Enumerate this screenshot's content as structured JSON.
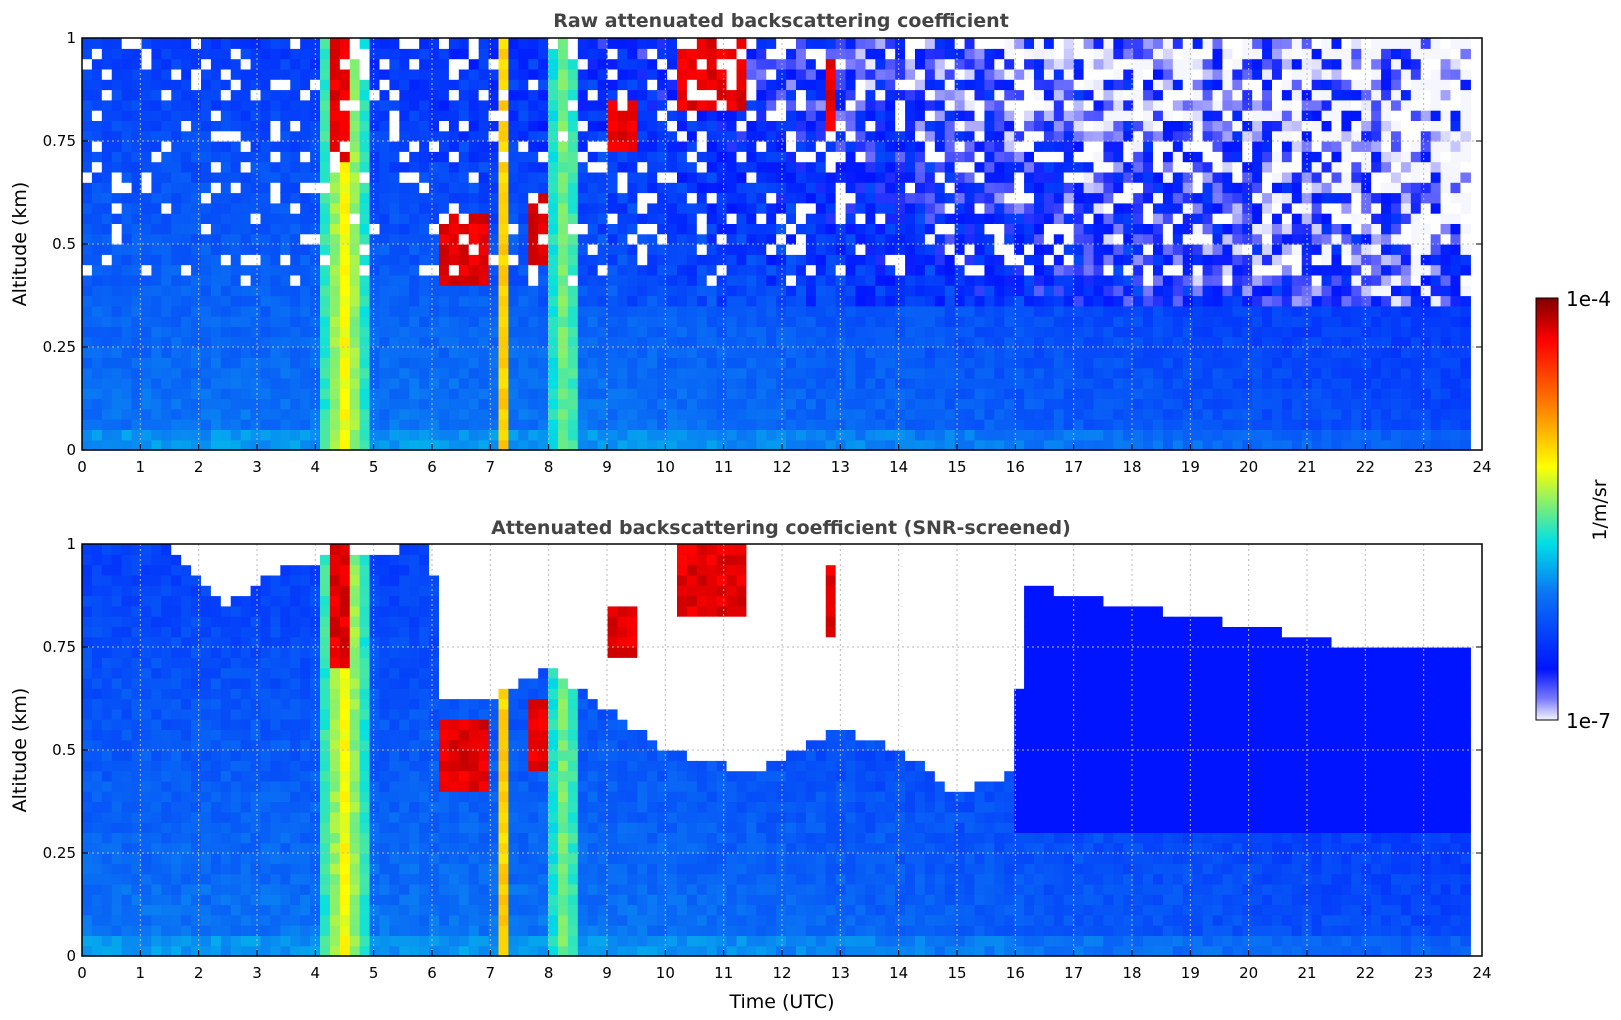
{
  "chart_data": [
    {
      "type": "heatmap",
      "title": "Raw attenuated backscattering coefficient",
      "xlabel": "",
      "ylabel": "Altitude (km)",
      "xlim": [
        0,
        24
      ],
      "ylim": [
        0,
        1
      ],
      "xticks": [
        "0",
        "1",
        "2",
        "3",
        "4",
        "5",
        "6",
        "7",
        "8",
        "9",
        "10",
        "11",
        "12",
        "13",
        "14",
        "15",
        "16",
        "17",
        "18",
        "19",
        "20",
        "21",
        "22",
        "23",
        "24"
      ],
      "yticks": [
        "0",
        "0.25",
        "0.5",
        "0.75",
        "1"
      ],
      "grid": true,
      "screened": false,
      "data_end_time": 23.8,
      "features": [
        {
          "kind": "aerosol-column",
          "t_start": 4.0,
          "t_end": 5.0,
          "alt_top": 1.0,
          "level": 0.6
        },
        {
          "kind": "aerosol-column",
          "t_start": 7.1,
          "t_end": 7.35,
          "alt_top": 1.0,
          "level": 0.65
        },
        {
          "kind": "aerosol-column",
          "t_start": 8.05,
          "t_end": 8.3,
          "alt_top": 1.0,
          "level": 0.65
        },
        {
          "kind": "aerosol-column",
          "t_start": 8.35,
          "t_end": 8.55,
          "alt_top": 1.0,
          "level": 0.5
        },
        {
          "kind": "cloud",
          "t_start": 6.1,
          "t_end": 6.9,
          "alt_bottom": 0.4,
          "alt_top": 0.58
        },
        {
          "kind": "cloud",
          "t_start": 7.6,
          "t_end": 8.0,
          "alt_bottom": 0.45,
          "alt_top": 0.62
        },
        {
          "kind": "cloud",
          "t_start": 9.0,
          "t_end": 9.6,
          "alt_bottom": 0.72,
          "alt_top": 0.85
        },
        {
          "kind": "cloud",
          "t_start": 10.2,
          "t_end": 11.4,
          "alt_bottom": 0.82,
          "alt_top": 1.0
        },
        {
          "kind": "cloud",
          "t_start": 12.8,
          "t_end": 13.0,
          "alt_bottom": 0.78,
          "alt_top": 0.95
        },
        {
          "kind": "cloud",
          "t_start": 4.3,
          "t_end": 4.55,
          "alt_bottom": 0.7,
          "alt_top": 1.0
        }
      ]
    },
    {
      "type": "heatmap",
      "title": "Attenuated backscattering coefficient (SNR-screened)",
      "xlabel": "Time (UTC)",
      "ylabel": "Altitude (km)",
      "xlim": [
        0,
        24
      ],
      "ylim": [
        0,
        1
      ],
      "xticks": [
        "0",
        "1",
        "2",
        "3",
        "4",
        "5",
        "6",
        "7",
        "8",
        "9",
        "10",
        "11",
        "12",
        "13",
        "14",
        "15",
        "16",
        "17",
        "18",
        "19",
        "20",
        "21",
        "22",
        "23",
        "24"
      ],
      "yticks": [
        "0",
        "0.25",
        "0.5",
        "0.75",
        "1"
      ],
      "grid": true,
      "screened": true,
      "data_end_time": 23.8,
      "screen_boundary_km": [
        [
          0,
          1.0
        ],
        [
          1.5,
          1.0
        ],
        [
          2.5,
          0.85
        ],
        [
          3.5,
          0.95
        ],
        [
          6.0,
          1.0
        ],
        [
          6.2,
          0.62
        ],
        [
          7.0,
          0.62
        ],
        [
          8.0,
          0.7
        ],
        [
          9.0,
          0.6
        ],
        [
          10.0,
          0.5
        ],
        [
          11.5,
          0.45
        ],
        [
          13.0,
          0.55
        ],
        [
          14.0,
          0.5
        ],
        [
          15.0,
          0.4
        ],
        [
          16.0,
          0.45
        ],
        [
          16.15,
          0.9
        ],
        [
          18.0,
          0.85
        ],
        [
          22.0,
          0.75
        ],
        [
          23.8,
          0.75
        ]
      ]
    }
  ],
  "colorbar": {
    "label": "1/m/sr",
    "min_label": "1e-7",
    "max_label": "1e-4",
    "colormap": "jet-like",
    "colors": [
      "#ffffff",
      "#0010ff",
      "#0a6cf0",
      "#00e5e5",
      "#ffff00",
      "#ff7a00",
      "#ff0000",
      "#7f0000"
    ]
  }
}
